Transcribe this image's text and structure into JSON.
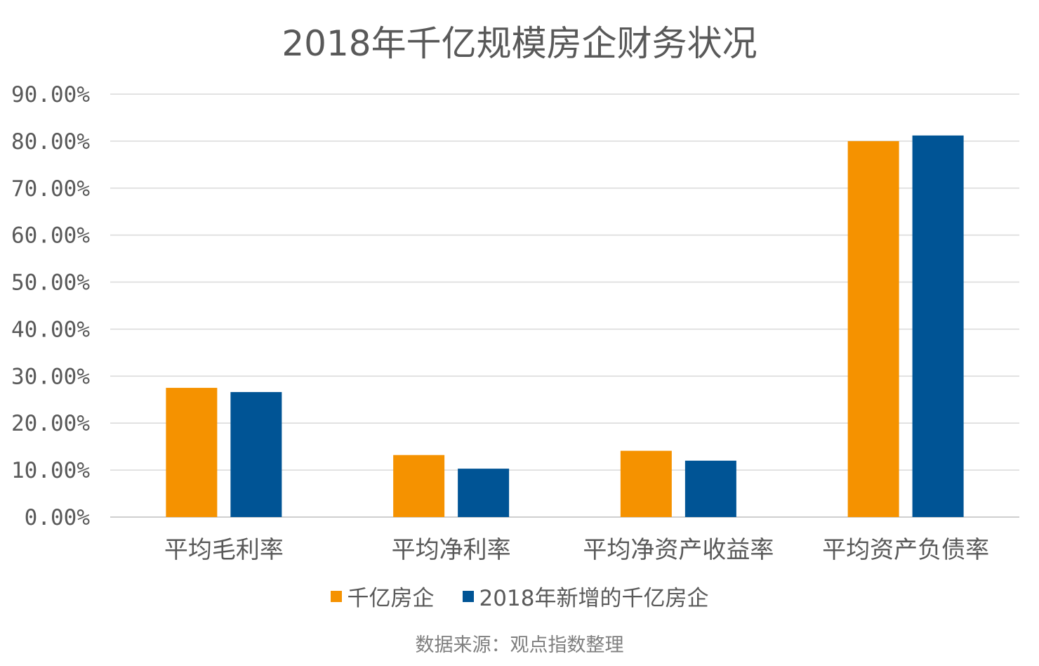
{
  "chart_data": {
    "type": "bar",
    "title": "2018年千亿规模房企财务状况",
    "categories": [
      "平均毛利率",
      "平均净利率",
      "平均净资产收益率",
      "平均资产负债率"
    ],
    "series": [
      {
        "name": "千亿房企",
        "color": "#F59200",
        "values": [
          27.5,
          13.2,
          14.1,
          80.0
        ]
      },
      {
        "name": "2018年新增的千亿房企",
        "color": "#005495",
        "values": [
          26.6,
          10.3,
          12.0,
          81.2
        ]
      }
    ],
    "ylim": [
      0,
      90
    ],
    "yticks": [
      "0.00%",
      "10.00%",
      "20.00%",
      "30.00%",
      "40.00%",
      "50.00%",
      "60.00%",
      "70.00%",
      "80.00%",
      "90.00%"
    ],
    "xlabel": "",
    "ylabel": "",
    "grid": true,
    "legend_position": "bottom"
  },
  "source_note": "数据来源：观点指数整理"
}
